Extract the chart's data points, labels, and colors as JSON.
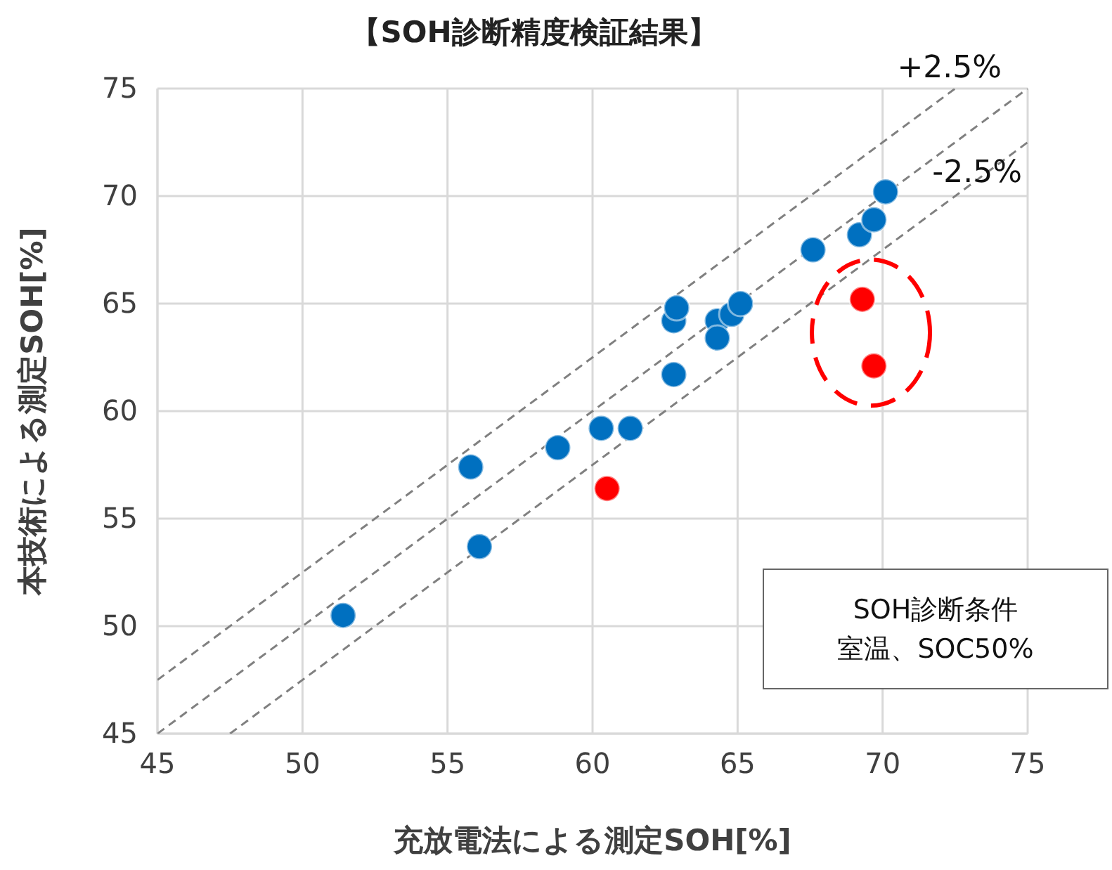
{
  "chart_data": {
    "type": "scatter",
    "title": "【SOH診断精度検証結果】",
    "xlabel": "充放電法による測定SOH[%]",
    "ylabel": "本技術による測定SOH[%]",
    "xlim": [
      45,
      75
    ],
    "xticks": [
      45,
      50,
      55,
      60,
      65,
      70,
      75
    ],
    "ylim": [
      45,
      75
    ],
    "yticks": [
      45,
      50,
      55,
      60,
      65,
      70,
      75
    ],
    "grid": true,
    "marker": "circle",
    "series": [
      {
        "color": "#0070c0",
        "x": [
          51.4,
          55.8,
          56.1,
          58.8,
          60.3,
          61.3,
          62.8,
          62.8,
          62.9,
          64.3,
          64.3,
          64.8,
          65.1,
          67.6,
          69.2,
          69.7,
          70.1
        ],
        "values": [
          50.5,
          57.4,
          53.7,
          58.3,
          59.2,
          59.2,
          61.7,
          64.2,
          64.8,
          64.2,
          63.4,
          64.5,
          65.0,
          67.5,
          68.2,
          68.9,
          70.2
        ]
      },
      {
        "color": "#ff0000",
        "x": [
          60.5,
          69.3,
          69.7
        ],
        "values": [
          56.4,
          65.2,
          62.1
        ]
      },
      {
        "type": "line",
        "color": "#808080",
        "line_style": "dashed",
        "marker": "none",
        "x": [
          45,
          72.5
        ],
        "values": [
          47.5,
          75
        ]
      },
      {
        "type": "line",
        "color": "#808080",
        "line_style": "dashed",
        "marker": "none",
        "x": [
          45,
          75
        ],
        "values": [
          45,
          75
        ]
      },
      {
        "type": "line",
        "color": "#808080",
        "line_style": "dashed",
        "marker": "none",
        "x": [
          47.5,
          75
        ],
        "values": [
          45,
          72.5
        ]
      }
    ],
    "annotations": [
      {
        "text": "+2.5%",
        "x": 72.5,
        "y": 75
      },
      {
        "text": "-2.5%",
        "x": 75,
        "y": 72.5
      },
      "SOH診断条件",
      "室温、SOC50%"
    ]
  }
}
